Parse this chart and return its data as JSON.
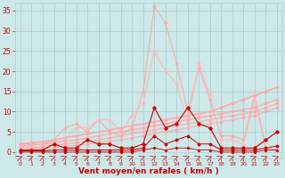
{
  "background_color": "#cce8e8",
  "grid_color": "#aacccc",
  "xlabel": "Vent moyen/en rafales ( km/h )",
  "xlabel_color": "#cc0000",
  "xlabel_fontsize": 6.5,
  "xtick_color": "#cc0000",
  "ytick_color": "#cc0000",
  "xlim": [
    -0.5,
    23.5
  ],
  "ylim": [
    -1.5,
    37
  ],
  "yticks": [
    0,
    5,
    10,
    15,
    20,
    25,
    30,
    35
  ],
  "xticks": [
    0,
    1,
    2,
    3,
    4,
    5,
    6,
    7,
    8,
    9,
    10,
    11,
    12,
    13,
    14,
    15,
    16,
    17,
    18,
    19,
    20,
    21,
    22,
    23
  ],
  "lines": [
    {
      "x": [
        0,
        1,
        2,
        3,
        4,
        5,
        6,
        7,
        8,
        9,
        10,
        11,
        12,
        13,
        14,
        15,
        16,
        17,
        18,
        19,
        20,
        21,
        22,
        23
      ],
      "y": [
        2,
        2,
        2,
        3,
        6,
        7,
        5,
        8,
        5,
        4,
        6,
        15,
        36,
        32,
        22,
        10,
        21,
        13,
        4,
        4,
        3,
        14,
        1,
        0.5
      ],
      "color": "#ffaaaa",
      "lw": 0.8,
      "marker": "D",
      "ms": 1.5
    },
    {
      "x": [
        0,
        1,
        2,
        3,
        4,
        5,
        6,
        7,
        8,
        9,
        10,
        11,
        12,
        13,
        14,
        15,
        16,
        17,
        18,
        19,
        20,
        21,
        22,
        23
      ],
      "y": [
        1,
        1,
        1,
        2,
        3,
        6,
        6,
        8,
        8,
        5,
        9,
        12,
        25,
        20,
        17,
        7,
        22,
        14,
        3,
        3,
        2,
        13,
        0.5,
        0.3
      ],
      "color": "#ffbbbb",
      "lw": 0.8,
      "marker": "D",
      "ms": 1.5
    },
    {
      "x": [
        0,
        1,
        2,
        3,
        4,
        5,
        6,
        7,
        8,
        9,
        10,
        11,
        12,
        13,
        14,
        15,
        16,
        17,
        18,
        19,
        20,
        21,
        22,
        23
      ],
      "y": [
        2,
        2.3,
        2.6,
        3,
        3.5,
        4,
        4.5,
        5,
        5.5,
        6,
        6.5,
        7,
        7.5,
        8,
        8.5,
        9,
        9.5,
        10,
        11,
        12,
        13,
        14,
        15,
        16
      ],
      "color": "#ffaaaa",
      "lw": 1.2,
      "marker": "D",
      "ms": 1.5
    },
    {
      "x": [
        0,
        1,
        2,
        3,
        4,
        5,
        6,
        7,
        8,
        9,
        10,
        11,
        12,
        13,
        14,
        15,
        16,
        17,
        18,
        19,
        20,
        21,
        22,
        23
      ],
      "y": [
        1.5,
        1.8,
        2,
        2.3,
        2.7,
        3,
        3.5,
        4,
        4.5,
        5,
        5.5,
        6,
        6.5,
        7,
        7.5,
        8,
        8.5,
        9,
        9.5,
        10,
        10.5,
        11,
        12,
        13
      ],
      "color": "#ffaaaa",
      "lw": 1.0,
      "marker": "D",
      "ms": 1.5
    },
    {
      "x": [
        0,
        1,
        2,
        3,
        4,
        5,
        6,
        7,
        8,
        9,
        10,
        11,
        12,
        13,
        14,
        15,
        16,
        17,
        18,
        19,
        20,
        21,
        22,
        23
      ],
      "y": [
        1,
        1.2,
        1.4,
        1.7,
        2,
        2.3,
        2.7,
        3,
        3.5,
        4,
        4.5,
        5,
        5.5,
        6,
        6.5,
        7,
        7.5,
        8,
        8.5,
        9,
        9.5,
        10,
        11,
        12
      ],
      "color": "#ffaaaa",
      "lw": 0.8,
      "marker": "D",
      "ms": 1.5
    },
    {
      "x": [
        0,
        1,
        2,
        3,
        4,
        5,
        6,
        7,
        8,
        9,
        10,
        11,
        12,
        13,
        14,
        15,
        16,
        17,
        18,
        19,
        20,
        21,
        22,
        23
      ],
      "y": [
        0.5,
        0.7,
        0.9,
        1.1,
        1.4,
        1.7,
        2,
        2.3,
        2.7,
        3,
        3.5,
        4,
        4.5,
        5,
        5.5,
        6,
        6.5,
        7,
        7.5,
        8,
        8.5,
        9,
        10,
        11
      ],
      "color": "#ffaaaa",
      "lw": 0.7,
      "marker": "D",
      "ms": 1.5
    },
    {
      "x": [
        0,
        1,
        2,
        3,
        4,
        5,
        6,
        7,
        8,
        9,
        10,
        11,
        12,
        13,
        14,
        15,
        16,
        17,
        18,
        19,
        20,
        21,
        22,
        23
      ],
      "y": [
        0.5,
        0.5,
        0.5,
        2,
        1,
        1,
        3,
        2,
        2,
        1,
        1,
        2,
        11,
        6,
        7,
        11,
        7,
        6,
        1,
        1,
        1,
        1,
        3,
        5
      ],
      "color": "#cc0000",
      "lw": 0.8,
      "marker": "D",
      "ms": 1.8
    },
    {
      "x": [
        0,
        1,
        2,
        3,
        4,
        5,
        6,
        7,
        8,
        9,
        10,
        11,
        12,
        13,
        14,
        15,
        16,
        17,
        18,
        19,
        20,
        21,
        22,
        23
      ],
      "y": [
        0.3,
        0.3,
        0.3,
        0.5,
        0.5,
        0.5,
        0.5,
        0.5,
        0.5,
        0.5,
        0.5,
        1,
        4,
        2,
        3,
        4,
        2,
        2,
        0.5,
        0.5,
        0.5,
        0.5,
        1,
        1.5
      ],
      "color": "#cc0000",
      "lw": 0.7,
      "marker": "D",
      "ms": 1.5
    },
    {
      "x": [
        0,
        1,
        2,
        3,
        4,
        5,
        6,
        7,
        8,
        9,
        10,
        11,
        12,
        13,
        14,
        15,
        16,
        17,
        18,
        19,
        20,
        21,
        22,
        23
      ],
      "y": [
        0,
        0,
        0,
        0,
        0,
        0,
        0,
        0,
        0,
        0,
        0,
        0.5,
        1,
        0.5,
        1,
        1,
        0.5,
        0.5,
        0,
        0,
        0,
        0,
        0.5,
        0.5
      ],
      "color": "#cc0000",
      "lw": 0.6,
      "marker": "D",
      "ms": 1.2
    }
  ]
}
